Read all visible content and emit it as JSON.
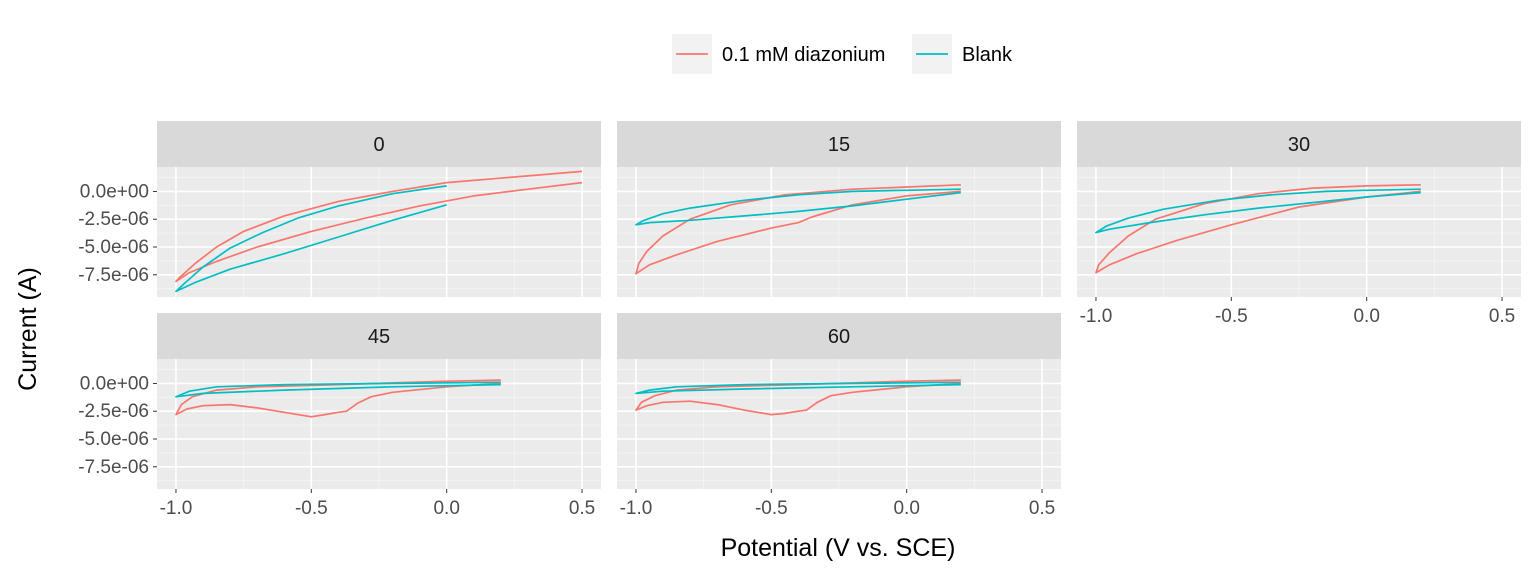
{
  "chart_data": {
    "type": "line",
    "xlabel": "Potential (V vs. SCE)",
    "ylabel": "Current (A)",
    "xlim": [
      -1.07,
      0.57
    ],
    "ylim": [
      -9.5e-06,
      2.2e-06
    ],
    "x_ticks": [
      -1.0,
      -0.5,
      0.0,
      0.5
    ],
    "x_tick_labels": [
      "-1.0",
      "-0.5",
      "0.0",
      "0.5"
    ],
    "y_ticks": [
      0,
      -2.5e-06,
      -5e-06,
      -7.5e-06
    ],
    "y_tick_labels": [
      "0.0e+00",
      "-2.5e-06",
      "-5.0e-06",
      "-7.5e-06"
    ],
    "grid": true,
    "legend": {
      "position": "top",
      "items": [
        {
          "label": "0.1 mM diazonium",
          "color": "#F8766D"
        },
        {
          "label": "Blank",
          "color": "#00BFC4"
        }
      ]
    },
    "panels": [
      {
        "title": "0",
        "series": [
          {
            "name": "0.1 mM diazonium",
            "color": "#F8766D",
            "points": [
              [
                0.5,
                8e-07
              ],
              [
                0.3,
                2e-07
              ],
              [
                0.1,
                -4e-07
              ],
              [
                -0.1,
                -1.3e-06
              ],
              [
                -0.3,
                -2.4e-06
              ],
              [
                -0.5,
                -3.6e-06
              ],
              [
                -0.7,
                -5e-06
              ],
              [
                -0.85,
                -6.3e-06
              ],
              [
                -0.95,
                -7.3e-06
              ],
              [
                -1.0,
                -8.1e-06
              ],
              [
                -0.98,
                -7.6e-06
              ],
              [
                -0.93,
                -6.5e-06
              ],
              [
                -0.85,
                -5e-06
              ],
              [
                -0.75,
                -3.6e-06
              ],
              [
                -0.6,
                -2.2e-06
              ],
              [
                -0.4,
                -9e-07
              ],
              [
                -0.2,
                0.0
              ],
              [
                0.0,
                8e-07
              ],
              [
                0.25,
                1.3e-06
              ],
              [
                0.5,
                1.8e-06
              ]
            ]
          },
          {
            "name": "Blank",
            "color": "#00BFC4",
            "points": [
              [
                0.0,
                -1.2e-06
              ],
              [
                -0.2,
                -2.6e-06
              ],
              [
                -0.4,
                -4.1e-06
              ],
              [
                -0.6,
                -5.6e-06
              ],
              [
                -0.8,
                -7e-06
              ],
              [
                -0.93,
                -8.2e-06
              ],
              [
                -1.0,
                -9e-06
              ],
              [
                -0.97,
                -8.3e-06
              ],
              [
                -0.9,
                -6.8e-06
              ],
              [
                -0.8,
                -5.1e-06
              ],
              [
                -0.68,
                -3.7e-06
              ],
              [
                -0.55,
                -2.4e-06
              ],
              [
                -0.4,
                -1.3e-06
              ],
              [
                -0.2,
                -2e-07
              ],
              [
                0.0,
                5e-07
              ]
            ]
          }
        ]
      },
      {
        "title": "15",
        "series": [
          {
            "name": "0.1 mM diazonium",
            "color": "#F8766D",
            "points": [
              [
                0.2,
                0.0
              ],
              [
                0.0,
                -4e-07
              ],
              [
                -0.2,
                -1.2e-06
              ],
              [
                -0.35,
                -2.3e-06
              ],
              [
                -0.4,
                -2.8e-06
              ],
              [
                -0.5,
                -3.3e-06
              ],
              [
                -0.7,
                -4.5e-06
              ],
              [
                -0.85,
                -5.7e-06
              ],
              [
                -0.95,
                -6.6e-06
              ],
              [
                -1.0,
                -7.4e-06
              ],
              [
                -0.99,
                -6.5e-06
              ],
              [
                -0.96,
                -5.4e-06
              ],
              [
                -0.9,
                -4e-06
              ],
              [
                -0.8,
                -2.5e-06
              ],
              [
                -0.65,
                -1.2e-06
              ],
              [
                -0.45,
                -3e-07
              ],
              [
                -0.2,
                2e-07
              ],
              [
                0.0,
                4e-07
              ],
              [
                0.2,
                6e-07
              ]
            ]
          },
          {
            "name": "Blank",
            "color": "#00BFC4",
            "points": [
              [
                0.2,
                -1e-07
              ],
              [
                0.0,
                -7e-07
              ],
              [
                -0.2,
                -1.3e-06
              ],
              [
                -0.4,
                -1.8e-06
              ],
              [
                -0.6,
                -2.2e-06
              ],
              [
                -0.8,
                -2.6e-06
              ],
              [
                -0.95,
                -2.8e-06
              ],
              [
                -1.0,
                -3e-06
              ],
              [
                -0.97,
                -2.6e-06
              ],
              [
                -0.9,
                -2e-06
              ],
              [
                -0.8,
                -1.5e-06
              ],
              [
                -0.6,
                -8e-07
              ],
              [
                -0.4,
                -3e-07
              ],
              [
                -0.2,
                0.0
              ],
              [
                0.0,
                1e-07
              ],
              [
                0.2,
                2e-07
              ]
            ]
          }
        ]
      },
      {
        "title": "30",
        "series": [
          {
            "name": "0.1 mM diazonium",
            "color": "#F8766D",
            "points": [
              [
                0.2,
                0.0
              ],
              [
                0.0,
                -5e-07
              ],
              [
                -0.25,
                -1.4e-06
              ],
              [
                -0.5,
                -3e-06
              ],
              [
                -0.7,
                -4.4e-06
              ],
              [
                -0.85,
                -5.6e-06
              ],
              [
                -0.95,
                -6.6e-06
              ],
              [
                -1.0,
                -7.3e-06
              ],
              [
                -0.99,
                -6.6e-06
              ],
              [
                -0.95,
                -5.5e-06
              ],
              [
                -0.88,
                -4e-06
              ],
              [
                -0.78,
                -2.5e-06
              ],
              [
                -0.6,
                -1.1e-06
              ],
              [
                -0.4,
                -2e-07
              ],
              [
                -0.2,
                3e-07
              ],
              [
                0.0,
                5e-07
              ],
              [
                0.2,
                6e-07
              ]
            ]
          },
          {
            "name": "Blank",
            "color": "#00BFC4",
            "points": [
              [
                0.2,
                -1e-07
              ],
              [
                0.0,
                -5e-07
              ],
              [
                -0.2,
                -1e-06
              ],
              [
                -0.4,
                -1.5e-06
              ],
              [
                -0.6,
                -2.1e-06
              ],
              [
                -0.8,
                -2.8e-06
              ],
              [
                -0.95,
                -3.4e-06
              ],
              [
                -1.0,
                -3.7e-06
              ],
              [
                -0.96,
                -3.1e-06
              ],
              [
                -0.88,
                -2.4e-06
              ],
              [
                -0.75,
                -1.6e-06
              ],
              [
                -0.55,
                -8e-07
              ],
              [
                -0.35,
                -3e-07
              ],
              [
                -0.15,
                0.0
              ],
              [
                0.0,
                1e-07
              ],
              [
                0.2,
                2e-07
              ]
            ]
          }
        ]
      },
      {
        "title": "45",
        "series": [
          {
            "name": "0.1 mM diazonium",
            "color": "#F8766D",
            "points": [
              [
                0.2,
                0.0
              ],
              [
                0.0,
                -3e-07
              ],
              [
                -0.2,
                -8e-07
              ],
              [
                -0.28,
                -1.2e-06
              ],
              [
                -0.33,
                -1.8e-06
              ],
              [
                -0.37,
                -2.5e-06
              ],
              [
                -0.4,
                -2.6e-06
              ],
              [
                -0.45,
                -2.8e-06
              ],
              [
                -0.5,
                -3e-06
              ],
              [
                -0.6,
                -2.6e-06
              ],
              [
                -0.7,
                -2.2e-06
              ],
              [
                -0.8,
                -1.9e-06
              ],
              [
                -0.9,
                -2e-06
              ],
              [
                -0.96,
                -2.3e-06
              ],
              [
                -1.0,
                -2.8e-06
              ],
              [
                -0.98,
                -1.9e-06
              ],
              [
                -0.94,
                -1.2e-06
              ],
              [
                -0.85,
                -6e-07
              ],
              [
                -0.7,
                -3e-07
              ],
              [
                -0.4,
                -1e-07
              ],
              [
                0.0,
                2e-07
              ],
              [
                0.2,
                3e-07
              ]
            ]
          },
          {
            "name": "Blank",
            "color": "#00BFC4",
            "points": [
              [
                0.2,
                -1e-07
              ],
              [
                -0.2,
                -3e-07
              ],
              [
                -0.6,
                -6e-07
              ],
              [
                -0.9,
                -9e-07
              ],
              [
                -1.0,
                -1.2e-06
              ],
              [
                -0.95,
                -7e-07
              ],
              [
                -0.85,
                -3e-07
              ],
              [
                -0.6,
                -1e-07
              ],
              [
                -0.2,
                0.0
              ],
              [
                0.2,
                1e-07
              ]
            ]
          }
        ]
      },
      {
        "title": "60",
        "series": [
          {
            "name": "0.1 mM diazonium",
            "color": "#F8766D",
            "points": [
              [
                0.2,
                0.0
              ],
              [
                0.0,
                -3e-07
              ],
              [
                -0.2,
                -8e-07
              ],
              [
                -0.28,
                -1.1e-06
              ],
              [
                -0.33,
                -1.7e-06
              ],
              [
                -0.37,
                -2.4e-06
              ],
              [
                -0.4,
                -2.5e-06
              ],
              [
                -0.45,
                -2.7e-06
              ],
              [
                -0.5,
                -2.8e-06
              ],
              [
                -0.6,
                -2.4e-06
              ],
              [
                -0.7,
                -1.9e-06
              ],
              [
                -0.8,
                -1.6e-06
              ],
              [
                -0.9,
                -1.7e-06
              ],
              [
                -0.96,
                -2e-06
              ],
              [
                -1.0,
                -2.4e-06
              ],
              [
                -0.98,
                -1.7e-06
              ],
              [
                -0.93,
                -1.1e-06
              ],
              [
                -0.85,
                -6e-07
              ],
              [
                -0.7,
                -3e-07
              ],
              [
                -0.4,
                -1e-07
              ],
              [
                0.0,
                2e-07
              ],
              [
                0.2,
                3e-07
              ]
            ]
          },
          {
            "name": "Blank",
            "color": "#00BFC4",
            "points": [
              [
                0.2,
                -1e-07
              ],
              [
                -0.2,
                -3e-07
              ],
              [
                -0.6,
                -5e-07
              ],
              [
                -0.9,
                -7e-07
              ],
              [
                -1.0,
                -9e-07
              ],
              [
                -0.95,
                -6e-07
              ],
              [
                -0.85,
                -3e-07
              ],
              [
                -0.6,
                -1e-07
              ],
              [
                -0.2,
                0.0
              ],
              [
                0.2,
                1e-07
              ]
            ]
          }
        ]
      }
    ]
  }
}
